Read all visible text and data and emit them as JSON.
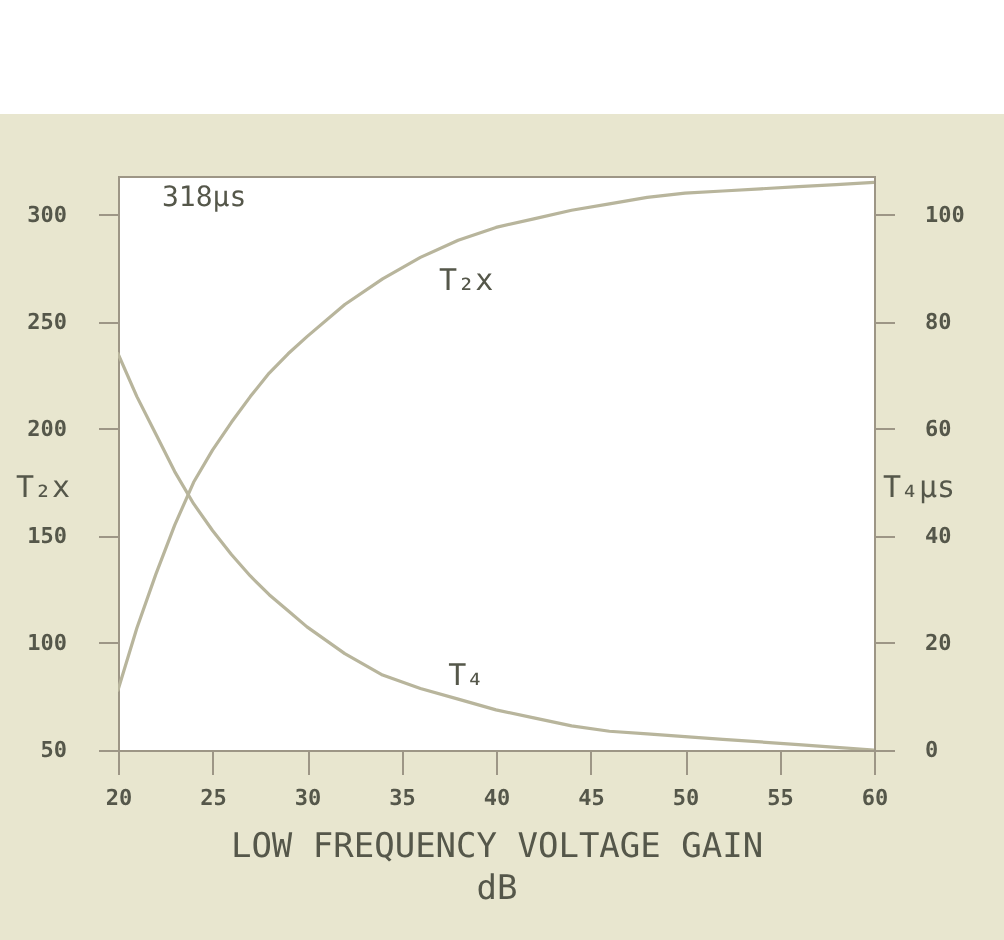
{
  "chart_data": {
    "type": "line",
    "xlabel": "LOW FREQUENCY VOLTAGE GAIN\ndB",
    "ylabel": "T₂x",
    "y2label": "T₄µs",
    "annotations": [
      "318µs"
    ],
    "x": [
      20,
      21,
      22,
      23,
      24,
      25,
      26,
      27,
      28,
      29,
      30,
      32,
      34,
      36,
      38,
      40,
      42,
      44,
      46,
      48,
      50,
      52,
      54,
      56,
      58,
      60
    ],
    "series": [
      {
        "name": "T₂x",
        "color": "#b8b59c",
        "values": [
          78,
          107,
          132,
          155,
          175,
          190,
          203,
          215,
          226,
          235,
          243,
          258,
          270,
          280,
          288,
          294,
          298,
          302,
          305,
          308,
          310,
          311,
          312,
          313,
          314,
          315
        ]
      },
      {
        "name": "T₄",
        "color": "#b8b59c",
        "axis": "y2",
        "values": [
          74,
          66,
          59,
          52,
          46,
          41,
          36.5,
          32.5,
          29,
          26,
          23,
          18,
          14,
          11.5,
          9.5,
          7.5,
          6,
          4.5,
          3.5,
          3,
          2.5,
          2,
          1.5,
          1,
          0.5,
          0
        ]
      }
    ],
    "xlim": [
      20,
      60
    ],
    "ylim": [
      50,
      318
    ],
    "y2lim": [
      0,
      107.2
    ],
    "xticks": [
      20,
      25,
      30,
      35,
      40,
      45,
      50,
      55,
      60
    ],
    "yticks": [
      50,
      100,
      150,
      200,
      250,
      300
    ],
    "y2ticks": [
      0,
      20,
      40,
      60,
      80,
      100
    ]
  }
}
